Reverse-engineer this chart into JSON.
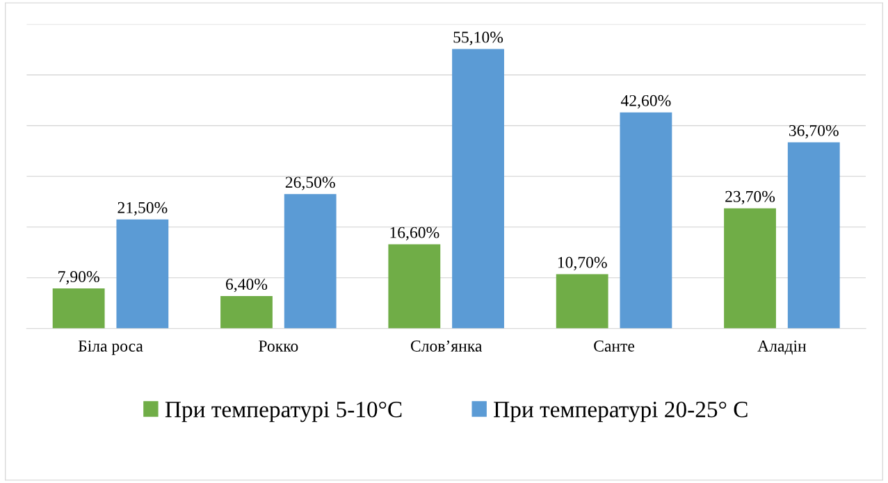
{
  "chart_data": {
    "type": "bar",
    "categories": [
      "Біла роса",
      "Рокко",
      "Слов’янка",
      "Санте",
      "Аладін"
    ],
    "series": [
      {
        "name": "При температурі 5-10°C",
        "color": "#70ad47",
        "values": [
          7.9,
          6.4,
          16.6,
          10.7,
          23.7
        ],
        "value_labels": [
          "7,90%",
          "6,40%",
          "16,60%",
          "10,70%",
          "23,70%"
        ]
      },
      {
        "name": "При температурі 20-25° C",
        "color": "#5b9bd5",
        "values": [
          21.5,
          26.5,
          55.1,
          42.6,
          36.7
        ],
        "value_labels": [
          "21,50%",
          "26,50%",
          "55,10%",
          "42,60%",
          "36,70%"
        ]
      }
    ],
    "ylim": [
      0,
      60
    ],
    "yticks": [
      {
        "value": 0,
        "label": null
      },
      {
        "value": 10,
        "label": null
      },
      {
        "value": 20,
        "label": null
      },
      {
        "value": 30,
        "label": null
      },
      {
        "value": 40,
        "label": null
      },
      {
        "value": 50,
        "label": null
      },
      {
        "value": 60,
        "label": null
      }
    ],
    "tick_labels": "x",
    "grid": "y",
    "legend": "bottom"
  }
}
